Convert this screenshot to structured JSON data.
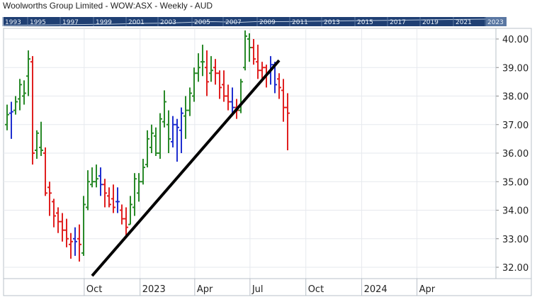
{
  "chart_data": {
    "type": "ohlc",
    "title": "Woolworths Group Limited - WOW:ASX - Weekly - AUD",
    "navigator_years": [
      "1993",
      "1995",
      "1997",
      "1999",
      "2001",
      "2003",
      "2005",
      "2007",
      "2009",
      "2011",
      "2013",
      "2015",
      "2017",
      "2019",
      "2021",
      "2023"
    ],
    "x_tick_labels": [
      "Oct",
      "2023",
      "Apr",
      "Jul",
      "Oct",
      "2024",
      "Apr"
    ],
    "y_tick_labels": [
      "32.00",
      "33.00",
      "34.00",
      "35.00",
      "36.00",
      "37.00",
      "38.00",
      "39.00",
      "40.00"
    ],
    "ylim": [
      31.6,
      40.55
    ],
    "grid": true,
    "colors": {
      "up": "#2a8a2a",
      "down": "#e02020",
      "neutral": "#1f2fd0",
      "trendline": "#000000",
      "navigator_bg": "#1f3f73"
    },
    "trendline": {
      "from": [
        "2022-10-14",
        31.7
      ],
      "to": [
        "2023-08-18",
        39.25
      ]
    },
    "bars": [
      {
        "d": "2022-05-27",
        "o": 37.0,
        "h": 37.7,
        "l": 36.8,
        "c": 37.35,
        "dir": "up"
      },
      {
        "d": "2022-06-03",
        "o": 37.4,
        "h": 37.8,
        "l": 36.5,
        "c": 37.45,
        "dir": "neutral"
      },
      {
        "d": "2022-06-10",
        "o": 37.5,
        "h": 38.0,
        "l": 37.35,
        "c": 37.8,
        "dir": "up"
      },
      {
        "d": "2022-06-17",
        "o": 37.9,
        "h": 38.6,
        "l": 37.5,
        "c": 38.4,
        "dir": "up"
      },
      {
        "d": "2022-06-24",
        "o": 38.0,
        "h": 38.55,
        "l": 37.7,
        "c": 38.1,
        "dir": "up"
      },
      {
        "d": "2022-07-01",
        "o": 38.7,
        "h": 39.6,
        "l": 38.0,
        "c": 39.3,
        "dir": "up"
      },
      {
        "d": "2022-07-08",
        "o": 39.2,
        "h": 39.4,
        "l": 35.6,
        "c": 36.0,
        "dir": "down"
      },
      {
        "d": "2022-07-15",
        "o": 36.1,
        "h": 36.8,
        "l": 35.8,
        "c": 36.7,
        "dir": "up"
      },
      {
        "d": "2022-07-22",
        "o": 36.2,
        "h": 37.1,
        "l": 35.9,
        "c": 36.1,
        "dir": "up"
      },
      {
        "d": "2022-07-29",
        "o": 36.0,
        "h": 36.2,
        "l": 34.5,
        "c": 34.6,
        "dir": "down"
      },
      {
        "d": "2022-08-05",
        "o": 34.8,
        "h": 35.0,
        "l": 33.8,
        "c": 34.6,
        "dir": "down"
      },
      {
        "d": "2022-08-12",
        "o": 34.3,
        "h": 34.4,
        "l": 33.4,
        "c": 33.8,
        "dir": "down"
      },
      {
        "d": "2022-08-19",
        "o": 33.9,
        "h": 34.1,
        "l": 33.2,
        "c": 33.6,
        "dir": "down"
      },
      {
        "d": "2022-08-26",
        "o": 33.6,
        "h": 33.9,
        "l": 32.9,
        "c": 33.3,
        "dir": "down"
      },
      {
        "d": "2022-09-02",
        "o": 33.3,
        "h": 33.7,
        "l": 32.7,
        "c": 33.0,
        "dir": "down"
      },
      {
        "d": "2022-09-09",
        "o": 32.8,
        "h": 33.2,
        "l": 32.3,
        "c": 32.9,
        "dir": "down"
      },
      {
        "d": "2022-09-16",
        "o": 33.0,
        "h": 33.4,
        "l": 32.4,
        "c": 32.9,
        "dir": "neutral"
      },
      {
        "d": "2022-09-23",
        "o": 33.0,
        "h": 33.5,
        "l": 32.2,
        "c": 32.8,
        "dir": "down"
      },
      {
        "d": "2022-09-30",
        "o": 32.5,
        "h": 34.5,
        "l": 32.4,
        "c": 34.2,
        "dir": "up"
      },
      {
        "d": "2022-10-07",
        "o": 34.1,
        "h": 35.4,
        "l": 34.0,
        "c": 35.0,
        "dir": "up"
      },
      {
        "d": "2022-10-14",
        "o": 34.9,
        "h": 35.5,
        "l": 34.8,
        "c": 35.0,
        "dir": "up"
      },
      {
        "d": "2022-10-21",
        "o": 35.0,
        "h": 35.6,
        "l": 34.8,
        "c": 35.1,
        "dir": "up"
      },
      {
        "d": "2022-10-28",
        "o": 35.2,
        "h": 35.5,
        "l": 34.5,
        "c": 34.9,
        "dir": "neutral"
      },
      {
        "d": "2022-11-04",
        "o": 34.9,
        "h": 35.1,
        "l": 34.1,
        "c": 34.6,
        "dir": "down"
      },
      {
        "d": "2022-11-11",
        "o": 34.5,
        "h": 34.8,
        "l": 34.1,
        "c": 34.2,
        "dir": "down"
      },
      {
        "d": "2022-11-18",
        "o": 34.4,
        "h": 34.9,
        "l": 33.9,
        "c": 34.1,
        "dir": "down"
      },
      {
        "d": "2022-11-25",
        "o": 34.3,
        "h": 34.8,
        "l": 33.9,
        "c": 34.3,
        "dir": "neutral"
      },
      {
        "d": "2022-12-02",
        "o": 34.0,
        "h": 34.2,
        "l": 33.5,
        "c": 33.7,
        "dir": "down"
      },
      {
        "d": "2022-12-09",
        "o": 33.7,
        "h": 34.1,
        "l": 33.1,
        "c": 33.4,
        "dir": "down"
      },
      {
        "d": "2022-12-16",
        "o": 33.5,
        "h": 34.5,
        "l": 33.5,
        "c": 34.2,
        "dir": "up"
      },
      {
        "d": "2022-12-23",
        "o": 34.1,
        "h": 35.3,
        "l": 33.8,
        "c": 35.1,
        "dir": "up"
      },
      {
        "d": "2022-12-30",
        "o": 34.6,
        "h": 35.3,
        "l": 34.3,
        "c": 35.0,
        "dir": "up"
      },
      {
        "d": "2023-01-06",
        "o": 35.0,
        "h": 35.8,
        "l": 34.9,
        "c": 35.5,
        "dir": "up"
      },
      {
        "d": "2023-01-13",
        "o": 35.6,
        "h": 36.8,
        "l": 35.5,
        "c": 36.5,
        "dir": "up"
      },
      {
        "d": "2023-01-20",
        "o": 36.2,
        "h": 37.0,
        "l": 36.0,
        "c": 36.7,
        "dir": "up"
      },
      {
        "d": "2023-01-27",
        "o": 36.6,
        "h": 36.9,
        "l": 35.9,
        "c": 36.0,
        "dir": "up"
      },
      {
        "d": "2023-02-03",
        "o": 36.0,
        "h": 37.4,
        "l": 35.8,
        "c": 37.2,
        "dir": "up"
      },
      {
        "d": "2023-02-10",
        "o": 37.1,
        "h": 38.2,
        "l": 36.9,
        "c": 37.8,
        "dir": "up"
      },
      {
        "d": "2023-02-17",
        "o": 37.0,
        "h": 37.5,
        "l": 36.0,
        "c": 36.5,
        "dir": "up"
      },
      {
        "d": "2023-02-24",
        "o": 36.4,
        "h": 37.3,
        "l": 36.2,
        "c": 37.0,
        "dir": "neutral"
      },
      {
        "d": "2023-03-03",
        "o": 37.0,
        "h": 37.2,
        "l": 35.7,
        "c": 36.9,
        "dir": "neutral"
      },
      {
        "d": "2023-03-10",
        "o": 36.8,
        "h": 37.6,
        "l": 36.0,
        "c": 37.4,
        "dir": "neutral"
      },
      {
        "d": "2023-03-17",
        "o": 37.3,
        "h": 38.0,
        "l": 36.5,
        "c": 37.5,
        "dir": "up"
      },
      {
        "d": "2023-03-24",
        "o": 37.5,
        "h": 38.3,
        "l": 37.3,
        "c": 38.1,
        "dir": "up"
      },
      {
        "d": "2023-03-31",
        "o": 38.0,
        "h": 39.0,
        "l": 37.8,
        "c": 38.8,
        "dir": "up"
      },
      {
        "d": "2023-04-07",
        "o": 38.8,
        "h": 39.5,
        "l": 38.5,
        "c": 39.0,
        "dir": "up"
      },
      {
        "d": "2023-04-14",
        "o": 39.2,
        "h": 39.8,
        "l": 38.7,
        "c": 39.2,
        "dir": "up"
      },
      {
        "d": "2023-04-21",
        "o": 39.0,
        "h": 39.6,
        "l": 38.0,
        "c": 38.5,
        "dir": "down"
      },
      {
        "d": "2023-04-28",
        "o": 38.8,
        "h": 39.4,
        "l": 38.5,
        "c": 38.9,
        "dir": "up"
      },
      {
        "d": "2023-05-05",
        "o": 39.0,
        "h": 39.3,
        "l": 38.4,
        "c": 38.8,
        "dir": "down"
      },
      {
        "d": "2023-05-12",
        "o": 38.8,
        "h": 38.9,
        "l": 37.9,
        "c": 38.3,
        "dir": "down"
      },
      {
        "d": "2023-05-19",
        "o": 38.4,
        "h": 38.9,
        "l": 37.8,
        "c": 38.0,
        "dir": "down"
      },
      {
        "d": "2023-05-26",
        "o": 38.0,
        "h": 38.4,
        "l": 37.5,
        "c": 37.8,
        "dir": "down"
      },
      {
        "d": "2023-06-02",
        "o": 37.8,
        "h": 38.3,
        "l": 37.4,
        "c": 37.6,
        "dir": "neutral"
      },
      {
        "d": "2023-06-09",
        "o": 37.6,
        "h": 37.9,
        "l": 37.2,
        "c": 37.5,
        "dir": "down"
      },
      {
        "d": "2023-06-16",
        "o": 37.5,
        "h": 38.6,
        "l": 37.4,
        "c": 38.5,
        "dir": "up"
      },
      {
        "d": "2023-06-23",
        "o": 39.0,
        "h": 40.3,
        "l": 38.9,
        "c": 40.1,
        "dir": "up"
      },
      {
        "d": "2023-06-30",
        "o": 40.0,
        "h": 40.2,
        "l": 39.2,
        "c": 39.7,
        "dir": "up"
      },
      {
        "d": "2023-07-07",
        "o": 39.7,
        "h": 40.0,
        "l": 39.1,
        "c": 39.3,
        "dir": "down"
      },
      {
        "d": "2023-07-14",
        "o": 39.2,
        "h": 39.8,
        "l": 38.6,
        "c": 38.9,
        "dir": "down"
      },
      {
        "d": "2023-07-21",
        "o": 38.9,
        "h": 39.2,
        "l": 38.5,
        "c": 39.0,
        "dir": "down"
      },
      {
        "d": "2023-07-28",
        "o": 39.0,
        "h": 39.1,
        "l": 38.3,
        "c": 38.8,
        "dir": "down"
      },
      {
        "d": "2023-08-04",
        "o": 38.8,
        "h": 39.4,
        "l": 38.4,
        "c": 39.1,
        "dir": "neutral"
      },
      {
        "d": "2023-08-11",
        "o": 39.1,
        "h": 39.2,
        "l": 38.1,
        "c": 38.4,
        "dir": "neutral"
      },
      {
        "d": "2023-08-18",
        "o": 38.6,
        "h": 38.8,
        "l": 37.9,
        "c": 38.3,
        "dir": "down"
      },
      {
        "d": "2023-08-25",
        "o": 38.2,
        "h": 38.6,
        "l": 37.1,
        "c": 37.6,
        "dir": "down"
      },
      {
        "d": "2023-09-01",
        "o": 37.6,
        "h": 38.1,
        "l": 36.1,
        "c": 37.4,
        "dir": "down"
      }
    ]
  }
}
